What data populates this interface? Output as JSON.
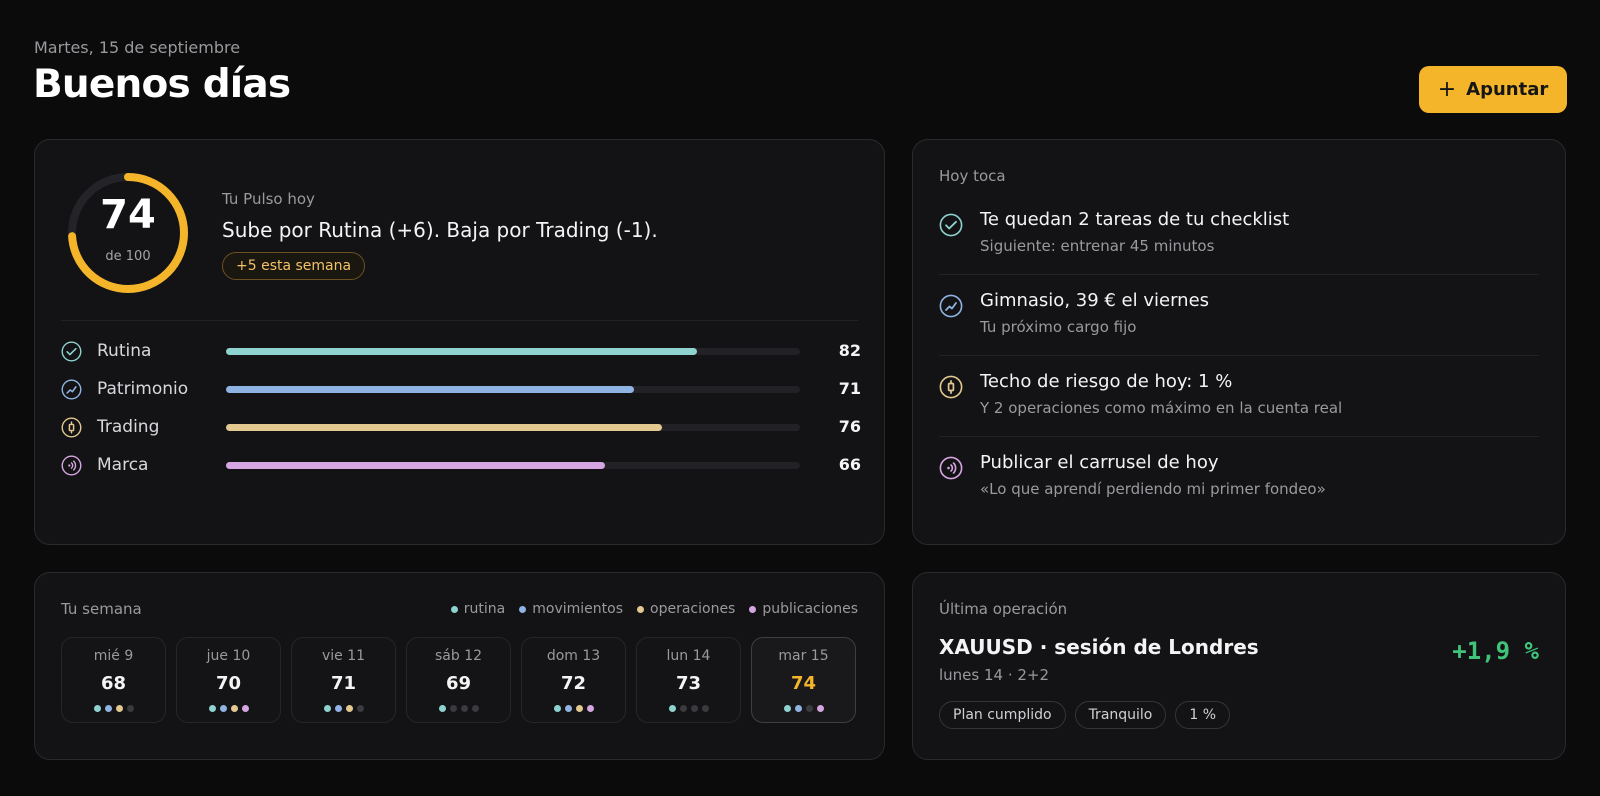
{
  "header": {
    "date": "Martes, 15 de septiembre",
    "greeting": "Buenos días",
    "action_label": "Apuntar"
  },
  "colors": {
    "accent": "#f5b52a",
    "rutina": "#8ed3cf",
    "patrimonio": "#8fb4e3",
    "trading": "#e3c98f",
    "marca": "#d6a6e3",
    "positive": "#3fc47a"
  },
  "pulse": {
    "score": "74",
    "max_label": "de 100",
    "score_fraction": 0.74,
    "label": "Tu Pulso hoy",
    "summary": "Sube por Rutina (+6). Baja por Trading (-1).",
    "badge": "+5 esta semana",
    "metrics": [
      {
        "label": "Rutina",
        "value": 82,
        "icon": "check-circle-icon",
        "color": "#8ed3cf"
      },
      {
        "label": "Patrimonio",
        "value": 71,
        "icon": "trend-circle-icon",
        "color": "#8fb4e3"
      },
      {
        "label": "Trading",
        "value": 76,
        "icon": "candle-circle-icon",
        "color": "#e3c98f"
      },
      {
        "label": "Marca",
        "value": 66,
        "icon": "broadcast-circle-icon",
        "color": "#d6a6e3"
      }
    ]
  },
  "today": {
    "label": "Hoy toca",
    "tasks": [
      {
        "title": "Te quedan 2 tareas de tu checklist",
        "subtitle": "Siguiente: entrenar 45 minutos",
        "icon": "check-circle-icon",
        "color": "#8ed3cf"
      },
      {
        "title": "Gimnasio, 39 € el viernes",
        "subtitle": "Tu próximo cargo fijo",
        "icon": "trend-circle-icon",
        "color": "#8fb4e3"
      },
      {
        "title": "Techo de riesgo de hoy: 1 %",
        "subtitle": "Y 2 operaciones como máximo en la cuenta real",
        "icon": "candle-circle-icon",
        "color": "#e3c98f"
      },
      {
        "title": "Publicar el carrusel de hoy",
        "subtitle": "«Lo que aprendí perdiendo mi primer fondeo»",
        "icon": "broadcast-circle-icon",
        "color": "#d6a6e3"
      }
    ]
  },
  "week": {
    "label": "Tu semana",
    "legend": [
      {
        "label": "rutina",
        "color": "#8ed3cf"
      },
      {
        "label": "movimientos",
        "color": "#8fb4e3"
      },
      {
        "label": "operaciones",
        "color": "#e3c98f"
      },
      {
        "label": "publicaciones",
        "color": "#d6a6e3"
      }
    ],
    "days": [
      {
        "name": "mié 9",
        "value": "68",
        "dots": [
          true,
          true,
          true,
          false
        ]
      },
      {
        "name": "jue 10",
        "value": "70",
        "dots": [
          true,
          true,
          true,
          true
        ]
      },
      {
        "name": "vie 11",
        "value": "71",
        "dots": [
          true,
          true,
          true,
          false
        ]
      },
      {
        "name": "sáb 12",
        "value": "69",
        "dots": [
          true,
          false,
          false,
          false
        ]
      },
      {
        "name": "dom 13",
        "value": "72",
        "dots": [
          true,
          true,
          true,
          true
        ]
      },
      {
        "name": "lun 14",
        "value": "73",
        "dots": [
          true,
          false,
          false,
          false
        ]
      },
      {
        "name": "mar 15",
        "value": "74",
        "dots": [
          true,
          true,
          false,
          true
        ],
        "today": true
      }
    ]
  },
  "last_trade": {
    "label": "Última operación",
    "title": "XAUUSD · sesión de Londres",
    "subtitle": "lunes 14 · 2+2",
    "result": "+1,9 %",
    "tags": [
      "Plan cumplido",
      "Tranquilo",
      "1 %"
    ]
  }
}
